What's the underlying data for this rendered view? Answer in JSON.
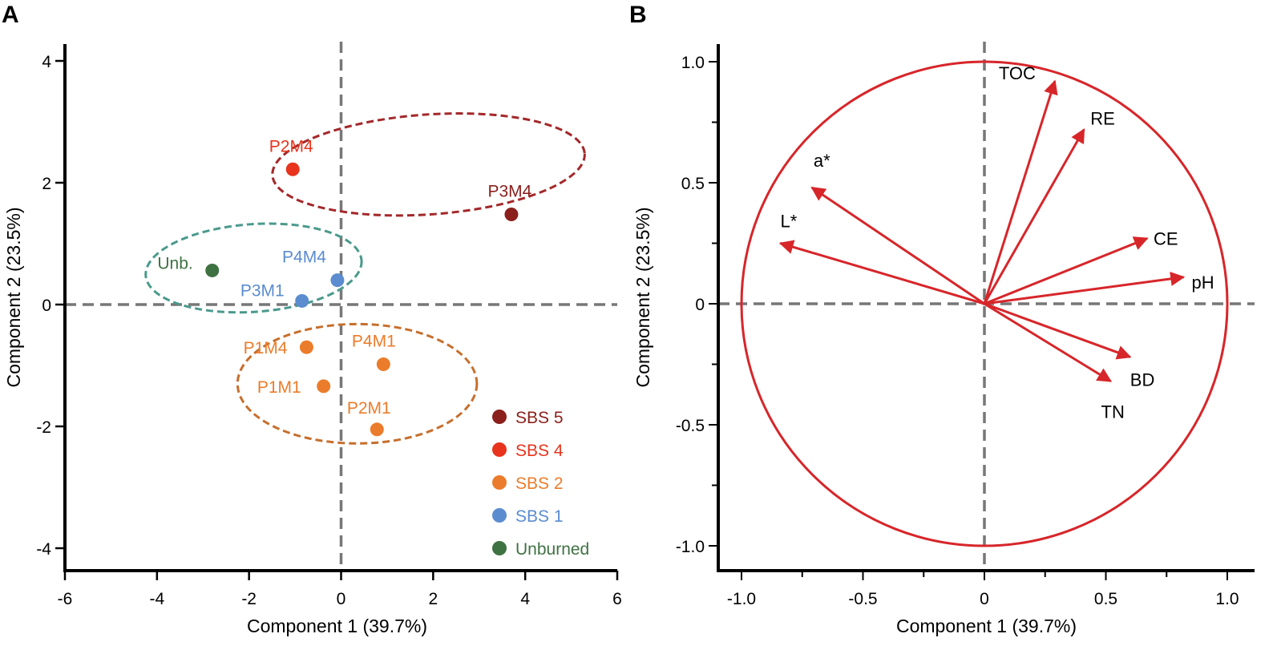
{
  "chart_data": [
    {
      "panel": "A",
      "type": "scatter",
      "xlabel": "Component 1 (39.7%)",
      "ylabel": "Component 2 (23.5%)",
      "xlim": [
        -6,
        6
      ],
      "ylim": [
        -4.6,
        4.4
      ],
      "xticks": [
        -6,
        -4,
        -2,
        0,
        2,
        4,
        6
      ],
      "yticks": [
        -4,
        -2,
        0,
        2,
        4
      ],
      "colors": {
        "SBS 5": "#8b1f1b",
        "SBS 4": "#e8341c",
        "SBS 2": "#eb7c2b",
        "SBS 1": "#5b8cd0",
        "Unburned": "#3f7243"
      },
      "points": [
        {
          "label": "P2M4",
          "group": "SBS 4",
          "x": -1.05,
          "y": 2.22
        },
        {
          "label": "P3M4",
          "group": "SBS 5",
          "x": 3.7,
          "y": 1.48
        },
        {
          "label": "Unb.",
          "group": "Unburned",
          "x": -2.8,
          "y": 0.56
        },
        {
          "label": "P4M4",
          "group": "SBS 1",
          "x": -0.08,
          "y": 0.4
        },
        {
          "label": "P3M1",
          "group": "SBS 1",
          "x": -0.85,
          "y": 0.06
        },
        {
          "label": "P1M4",
          "group": "SBS 2",
          "x": -0.75,
          "y": -0.7
        },
        {
          "label": "P4M1",
          "group": "SBS 2",
          "x": 0.92,
          "y": -0.98
        },
        {
          "label": "P1M1",
          "group": "SBS 2",
          "x": -0.38,
          "y": -1.34
        },
        {
          "label": "P2M1",
          "group": "SBS 2",
          "x": 0.78,
          "y": -2.05
        }
      ],
      "ellipses": [
        {
          "name": "SBS 4-5 group",
          "color": "#a3282a",
          "cx": 1.9,
          "cy": 2.3,
          "rx": 3.4,
          "ry": 0.82,
          "angle_deg": -4
        },
        {
          "name": "SBS 1 / Unburned group",
          "color": "#4a9a8c",
          "cx": -1.9,
          "cy": 0.6,
          "rx": 2.35,
          "ry": 0.72,
          "angle_deg": -4
        },
        {
          "name": "SBS 2 group",
          "color": "#c66f2d",
          "cx": 0.35,
          "cy": -1.3,
          "rx": 2.6,
          "ry": 0.98,
          "angle_deg": 0
        }
      ],
      "legend": [
        "SBS 5",
        "SBS 4",
        "SBS 2",
        "SBS 1",
        "Unburned"
      ],
      "legend_position": "bottom-right"
    },
    {
      "panel": "B",
      "type": "loading-plot",
      "xlabel": "Component 1 (39.7%)",
      "ylabel": "Component 2 (23.5%)",
      "xlim": [
        -1.1,
        1.1
      ],
      "ylim": [
        -1.1,
        1.05
      ],
      "xticks": [
        -1.0,
        -0.5,
        0,
        0.5,
        1.0
      ],
      "xtick_labels": [
        "-1.0",
        "-0.5",
        "0",
        "0.5",
        "1.0"
      ],
      "yticks": [
        -1.0,
        -0.5,
        0,
        0.5,
        1.0
      ],
      "ytick_labels": [
        "-1.0",
        "-0.5",
        "0",
        "0.5",
        "1.0"
      ],
      "circle_radius": 1.0,
      "arrow_color": "#d7262a",
      "vectors": [
        {
          "label": "TOC",
          "x": 0.29,
          "y": 0.92
        },
        {
          "label": "RE",
          "x": 0.41,
          "y": 0.72
        },
        {
          "label": "a*",
          "x": -0.71,
          "y": 0.48
        },
        {
          "label": "L*",
          "x": -0.84,
          "y": 0.25
        },
        {
          "label": "CE",
          "x": 0.67,
          "y": 0.27
        },
        {
          "label": "pH",
          "x": 0.82,
          "y": 0.11
        },
        {
          "label": "BD",
          "x": 0.6,
          "y": -0.22
        },
        {
          "label": "TN",
          "x": 0.52,
          "y": -0.32
        }
      ]
    }
  ]
}
